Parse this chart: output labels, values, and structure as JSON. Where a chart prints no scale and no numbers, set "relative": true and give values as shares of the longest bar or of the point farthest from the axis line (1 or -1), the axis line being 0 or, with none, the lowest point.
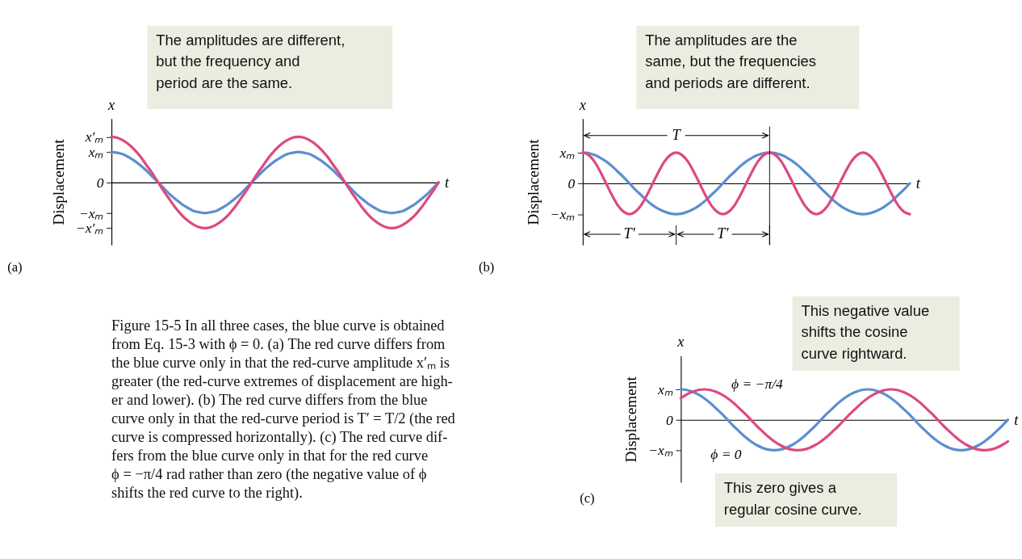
{
  "chart_data": [
    {
      "type": "line",
      "ylabel": "Displacement",
      "xlabel": "t",
      "tick_labels": "y",
      "relative": true,
      "categories": [
        null,
        null,
        null,
        null,
        null,
        null,
        null,
        null,
        null,
        null,
        null,
        null,
        null,
        null,
        null,
        null,
        null,
        null,
        null,
        null,
        null,
        null,
        null,
        null,
        null,
        null,
        null,
        null,
        null,
        null,
        null,
        null,
        null,
        null,
        null,
        null,
        null,
        null,
        null,
        null,
        null,
        null,
        null,
        null,
        null,
        null,
        null,
        null,
        null,
        null,
        null,
        null,
        null,
        null,
        null,
        null,
        null
      ],
      "series": [
        {
          "color": "#5b8fd0",
          "values": [
            0.67,
            0.65,
            0.62,
            0.55,
            0.47,
            0.37,
            0.26,
            0.13,
            0,
            -0.13,
            -0.26,
            -0.37,
            -0.47,
            -0.55,
            -0.62,
            -0.65,
            -0.67,
            -0.65,
            -0.62,
            -0.55,
            -0.47,
            -0.37,
            -0.26,
            -0.13,
            0,
            0.13,
            0.26,
            0.37,
            0.47,
            0.55,
            0.62,
            0.65,
            0.67,
            0.65,
            0.62,
            0.55,
            0.47,
            0.37,
            0.26,
            0.13,
            0,
            -0.13,
            -0.26,
            -0.37,
            -0.47,
            -0.55,
            -0.62,
            -0.65,
            -0.67,
            -0.65,
            -0.62,
            -0.55,
            -0.47,
            -0.37,
            -0.26,
            -0.13,
            0
          ]
        },
        {
          "color": "#dc4a80",
          "values": [
            1,
            0.98,
            0.92,
            0.83,
            0.71,
            0.56,
            0.38,
            0.2,
            0,
            -0.2,
            -0.38,
            -0.56,
            -0.71,
            -0.83,
            -0.92,
            -0.98,
            -1,
            -0.98,
            -0.92,
            -0.83,
            -0.71,
            -0.56,
            -0.38,
            -0.2,
            0,
            0.2,
            0.38,
            0.56,
            0.71,
            0.83,
            0.92,
            0.98,
            1,
            0.98,
            0.92,
            0.83,
            0.71,
            0.56,
            0.38,
            0.2,
            0,
            -0.2,
            -0.38,
            -0.56,
            -0.71,
            -0.83,
            -0.92,
            -0.98,
            -1,
            -0.98,
            -0.92,
            -0.83,
            -0.71,
            -0.56,
            -0.38,
            -0.2,
            0
          ]
        }
      ],
      "annotations": [
        "x",
        "The amplitudes are different,\nbut the frequency and\nperiod are the same.",
        "(a)",
        "x′ₘ",
        "xₘ",
        "0",
        "−xₘ",
        "−x′ₘ"
      ]
    },
    {
      "type": "line",
      "ylabel": "Displacement",
      "xlabel": "t",
      "tick_labels": "y",
      "relative": true,
      "categories": [
        null,
        null,
        null,
        null,
        null,
        null,
        null,
        null,
        null,
        null,
        null,
        null,
        null,
        null,
        null,
        null,
        null,
        null,
        null,
        null,
        null,
        null,
        null,
        null,
        null,
        null,
        null,
        null,
        null,
        null,
        null,
        null,
        null,
        null,
        null,
        null,
        null,
        null,
        null,
        null,
        null,
        null,
        null,
        null,
        null,
        null,
        null,
        null,
        null,
        null,
        null,
        null,
        null,
        null,
        null,
        null,
        null
      ],
      "series": [
        {
          "color": "#5b8fd0",
          "values": [
            1,
            0.98,
            0.92,
            0.83,
            0.71,
            0.56,
            0.38,
            0.2,
            0,
            -0.2,
            -0.38,
            -0.56,
            -0.71,
            -0.83,
            -0.92,
            -0.98,
            -1,
            -0.98,
            -0.92,
            -0.83,
            -0.71,
            -0.56,
            -0.38,
            -0.2,
            0,
            0.2,
            0.38,
            0.56,
            0.71,
            0.83,
            0.92,
            0.98,
            1,
            0.98,
            0.92,
            0.83,
            0.71,
            0.56,
            0.38,
            0.2,
            0,
            -0.2,
            -0.38,
            -0.56,
            -0.71,
            -0.83,
            -0.92,
            -0.98,
            -1,
            -0.98,
            -0.92,
            -0.83,
            -0.71,
            -0.56,
            -0.38,
            -0.2,
            0
          ]
        },
        {
          "color": "#dc4a80",
          "values": [
            1,
            0.92,
            0.71,
            0.38,
            0,
            -0.38,
            -0.71,
            -0.92,
            -1,
            -0.92,
            -0.71,
            -0.38,
            0,
            0.38,
            0.71,
            0.92,
            1,
            0.92,
            0.71,
            0.38,
            0,
            -0.38,
            -0.71,
            -0.92,
            -1,
            -0.92,
            -0.71,
            -0.38,
            0,
            0.38,
            0.71,
            0.92,
            1,
            0.92,
            0.71,
            0.38,
            0,
            -0.38,
            -0.71,
            -0.92,
            -1,
            -0.92,
            -0.71,
            -0.38,
            0,
            0.38,
            0.71,
            0.92,
            1,
            0.92,
            0.71,
            0.38,
            0,
            -0.38,
            -0.71,
            -0.92,
            -1
          ]
        }
      ],
      "annotations": [
        "x",
        "The amplitudes are the\nsame, but the frequencies\nand periods are different.",
        "(b)",
        "T",
        "T′",
        "T′",
        "xₘ",
        "0",
        "−xₘ"
      ]
    },
    {
      "type": "other",
      "annotations": [
        "Figure 15-5  In all three cases, the blue curve is obtained\nfrom Eq. 15-3 with ϕ = 0. (a) The red curve differs from\nthe blue curve only in that the red-curve amplitude x′ₘ is\ngreater (the red-curve extremes of displacement are high-\ner and lower). (b) The red curve differs from the blue\ncurve only in that the red-curve period is T′ = T/2 (the red\ncurve is compressed horizontally). (c) The red curve dif-\nfers from the blue curve only in that for the red curve\nϕ = −π/4 rad rather than zero (the negative value of ϕ\nshifts the red curve to the right)."
      ]
    },
    {
      "type": "line",
      "ylabel": "Displacement",
      "xlabel": "t",
      "tick_labels": "y",
      "relative": true,
      "categories": [
        null,
        null,
        null,
        null,
        null,
        null,
        null,
        null,
        null,
        null,
        null,
        null,
        null,
        null,
        null,
        null,
        null,
        null,
        null,
        null,
        null,
        null,
        null,
        null,
        null,
        null,
        null,
        null,
        null,
        null,
        null,
        null,
        null,
        null,
        null,
        null,
        null,
        null,
        null,
        null,
        null,
        null,
        null,
        null,
        null,
        null,
        null,
        null,
        null,
        null,
        null,
        null,
        null,
        null,
        null,
        null,
        null
      ],
      "series": [
        {
          "color": "#5b8fd0",
          "values": [
            1,
            0.98,
            0.92,
            0.83,
            0.71,
            0.56,
            0.38,
            0.2,
            0,
            -0.2,
            -0.38,
            -0.56,
            -0.71,
            -0.83,
            -0.92,
            -0.98,
            -1,
            -0.98,
            -0.92,
            -0.83,
            -0.71,
            -0.56,
            -0.38,
            -0.2,
            0,
            0.2,
            0.38,
            0.56,
            0.71,
            0.83,
            0.92,
            0.98,
            1,
            0.98,
            0.92,
            0.83,
            0.71,
            0.56,
            0.38,
            0.2,
            0,
            -0.2,
            -0.38,
            -0.56,
            -0.71,
            -0.83,
            -0.92,
            -0.98,
            -1,
            -0.98,
            -0.92,
            -0.83,
            -0.71,
            -0.56,
            -0.38,
            -0.2,
            0
          ]
        },
        {
          "color": "#dc4a80",
          "values": [
            0.71,
            0.83,
            0.92,
            0.98,
            1,
            0.98,
            0.92,
            0.83,
            0.71,
            0.56,
            0.38,
            0.2,
            0,
            -0.2,
            -0.38,
            -0.56,
            -0.71,
            -0.83,
            -0.92,
            -0.98,
            -1,
            -0.98,
            -0.92,
            -0.83,
            -0.71,
            -0.56,
            -0.38,
            -0.2,
            0,
            0.2,
            0.38,
            0.56,
            0.71,
            0.83,
            0.92,
            0.98,
            1,
            0.98,
            0.92,
            0.83,
            0.71,
            0.56,
            0.38,
            0.2,
            0,
            -0.2,
            -0.38,
            -0.56,
            -0.71,
            -0.83,
            -0.92,
            -0.98,
            -1,
            -0.98,
            -0.92,
            -0.83,
            -0.71
          ]
        }
      ],
      "annotations": [
        "x",
        "This negative value\nshifts the cosine\ncurve rightward.",
        "This zero gives a\nregular cosine curve.",
        "ϕ = −π/4",
        "ϕ = 0",
        "(c)",
        "xₘ",
        "0",
        "−xₘ"
      ]
    }
  ]
}
